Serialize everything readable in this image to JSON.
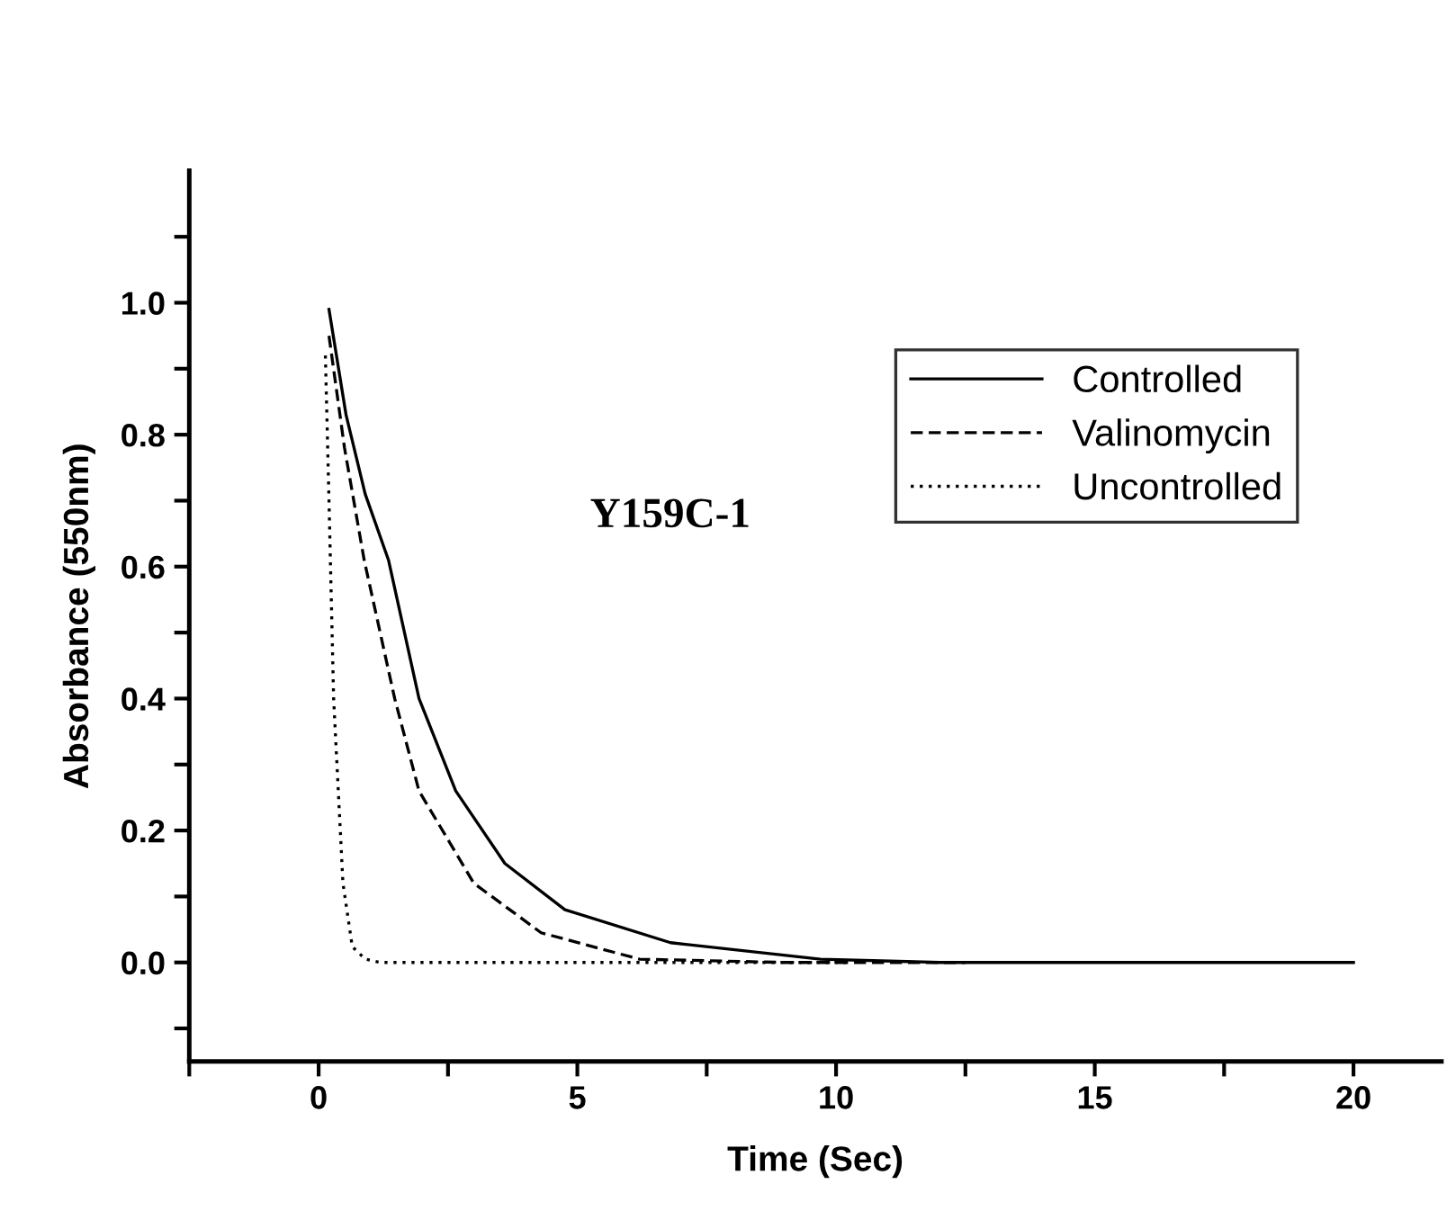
{
  "chart_data": {
    "type": "line",
    "xlabel": "Time (Sec)",
    "ylabel": "Absorbance (550nm)",
    "annotations": [
      "Y159C-1"
    ],
    "xlim": [
      -2.5,
      21.7
    ],
    "ylim": [
      -0.15,
      1.2
    ],
    "xticks": [
      {
        "value": -2.5,
        "label": null
      },
      0,
      {
        "value": 2.5,
        "label": null
      },
      5,
      {
        "value": 7.5,
        "label": null
      },
      10,
      {
        "value": 12.5,
        "label": null
      },
      15,
      {
        "value": 17.5,
        "label": null
      },
      20
    ],
    "yticks": [
      {
        "value": -0.1,
        "label": null
      },
      {
        "value": 0,
        "label": "0.0"
      },
      {
        "value": 0.1,
        "label": null
      },
      0.2,
      {
        "value": 0.3,
        "label": null
      },
      0.4,
      {
        "value": 0.5,
        "label": null
      },
      0.6,
      {
        "value": 0.7,
        "label": null
      },
      0.8,
      {
        "value": 0.9,
        "label": null
      },
      {
        "value": 1,
        "label": "1.0"
      },
      {
        "value": 1.1,
        "label": null
      }
    ],
    "grid": false,
    "legend": "top right",
    "series": [
      {
        "name": "Controlled",
        "color": "#000000",
        "line_style": "solid",
        "x": [
          0.2,
          0.53,
          0.9,
          1.35,
          1.94,
          2.65,
          3.6,
          4.76,
          6.8,
          9.7,
          12,
          15,
          20
        ],
        "values": [
          0.99,
          0.83,
          0.71,
          0.61,
          0.4,
          0.26,
          0.15,
          0.08,
          0.03,
          0.005,
          0,
          0,
          0
        ]
      },
      {
        "name": "Valinomycin",
        "color": "#000000",
        "line_style": "dashed",
        "x": [
          0.2,
          0.5,
          0.88,
          1.47,
          1.94,
          3.0,
          4.3,
          6.2,
          9,
          12.5
        ],
        "values": [
          0.95,
          0.78,
          0.61,
          0.4,
          0.26,
          0.12,
          0.045,
          0.005,
          0,
          0
        ]
      },
      {
        "name": "Uncontrolled",
        "color": "#000000",
        "line_style": "dotted",
        "x": [
          0.13,
          0.2,
          0.29,
          0.47,
          0.65,
          0.9,
          1.18,
          5,
          10.2
        ],
        "values": [
          0.92,
          0.7,
          0.4,
          0.12,
          0.024,
          0.005,
          0,
          0,
          0
        ]
      }
    ]
  }
}
